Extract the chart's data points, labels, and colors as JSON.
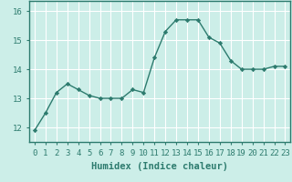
{
  "x": [
    0,
    1,
    2,
    3,
    4,
    5,
    6,
    7,
    8,
    9,
    10,
    11,
    12,
    13,
    14,
    15,
    16,
    17,
    18,
    19,
    20,
    21,
    22,
    23
  ],
  "y": [
    11.9,
    12.5,
    13.2,
    13.5,
    13.3,
    13.1,
    13.0,
    13.0,
    13.0,
    13.3,
    13.2,
    14.4,
    15.3,
    15.7,
    15.7,
    15.7,
    15.1,
    14.9,
    14.3,
    14.0,
    14.0,
    14.0,
    14.1,
    14.1
  ],
  "line_color": "#2d7b6e",
  "marker": "D",
  "marker_size": 2.2,
  "bg_color": "#cceee8",
  "grid_color": "#ffffff",
  "xlabel": "Humidex (Indice chaleur)",
  "ylim": [
    11.5,
    16.35
  ],
  "yticks": [
    12,
    13,
    14,
    15,
    16
  ],
  "ytick_labels": [
    "12",
    "13",
    "14",
    "15",
    "16"
  ],
  "xticks": [
    0,
    1,
    2,
    3,
    4,
    5,
    6,
    7,
    8,
    9,
    10,
    11,
    12,
    13,
    14,
    15,
    16,
    17,
    18,
    19,
    20,
    21,
    22,
    23
  ],
  "xtick_labels": [
    "0",
    "1",
    "2",
    "3",
    "4",
    "5",
    "6",
    "7",
    "8",
    "9",
    "10",
    "11",
    "12",
    "13",
    "14",
    "15",
    "16",
    "17",
    "18",
    "19",
    "20",
    "21",
    "22",
    "23"
  ],
  "tick_fontsize": 6.5,
  "xlabel_fontsize": 7.5,
  "line_width": 1.0,
  "spine_color": "#2d7b6e"
}
